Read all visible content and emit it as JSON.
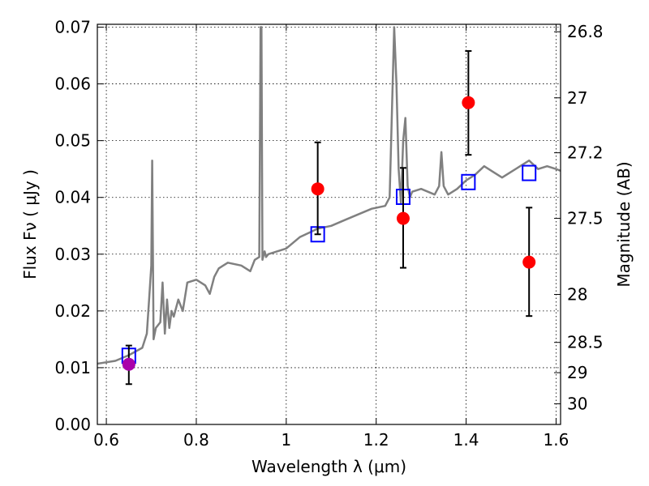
{
  "chart_data": {
    "type": "scatter",
    "xlabel": "Wavelength  λ (μm)",
    "ylabel": "Flux  Fν  ( μJy )",
    "ylabel2": "Magnitude (AB)",
    "xlim": [
      0.58,
      1.61
    ],
    "ylim": [
      0.0,
      0.0705
    ],
    "grid": true,
    "x_ticks": [
      0.6,
      0.8,
      1.0,
      1.2,
      1.4,
      1.6
    ],
    "x_tick_labels": [
      "0.6",
      "0.8",
      "1",
      "1.2",
      "1.4",
      "1.6"
    ],
    "y_ticks": [
      0.0,
      0.01,
      0.02,
      0.03,
      0.04,
      0.05,
      0.06,
      0.07
    ],
    "y_tick_labels": [
      "0.00",
      "0.01",
      "0.02",
      "0.03",
      "0.04",
      "0.05",
      "0.06",
      "0.07"
    ],
    "mag_ticks": [
      26.8,
      27.0,
      27.2,
      27.5,
      28.0,
      28.5,
      29.0,
      30.0
    ],
    "mag_tick_labels": [
      "26.8",
      "27",
      "27.2",
      "27.5",
      "28",
      "28.5",
      "29",
      "30"
    ],
    "series": [
      {
        "kind": "line",
        "color": "#808080",
        "x": [
          0.58,
          0.62,
          0.65,
          0.68,
          0.69,
          0.695,
          0.7,
          0.702,
          0.705,
          0.71,
          0.72,
          0.725,
          0.73,
          0.735,
          0.74,
          0.745,
          0.75,
          0.76,
          0.77,
          0.78,
          0.8,
          0.82,
          0.83,
          0.84,
          0.85,
          0.86,
          0.87,
          0.9,
          0.92,
          0.93,
          0.94,
          0.943,
          0.945,
          0.947,
          0.95,
          0.952,
          0.955,
          0.96,
          1.0,
          1.03,
          1.07,
          1.1,
          1.13,
          1.16,
          1.19,
          1.22,
          1.23,
          1.235,
          1.24,
          1.245,
          1.25,
          1.255,
          1.26,
          1.265,
          1.27,
          1.275,
          1.28,
          1.3,
          1.33,
          1.34,
          1.345,
          1.35,
          1.36,
          1.38,
          1.4,
          1.42,
          1.44,
          1.46,
          1.48,
          1.5,
          1.52,
          1.54,
          1.56,
          1.58,
          1.6,
          1.61
        ],
        "y": [
          0.0107,
          0.0112,
          0.0122,
          0.0135,
          0.016,
          0.022,
          0.028,
          0.0465,
          0.015,
          0.017,
          0.018,
          0.025,
          0.016,
          0.022,
          0.017,
          0.02,
          0.019,
          0.022,
          0.02,
          0.025,
          0.0255,
          0.0245,
          0.023,
          0.026,
          0.0275,
          0.028,
          0.0285,
          0.028,
          0.027,
          0.029,
          0.0295,
          0.07,
          0.07,
          0.029,
          0.03,
          0.0305,
          0.0295,
          0.03,
          0.031,
          0.033,
          0.0345,
          0.035,
          0.036,
          0.037,
          0.038,
          0.0385,
          0.04,
          0.055,
          0.07,
          0.06,
          0.045,
          0.039,
          0.05,
          0.054,
          0.042,
          0.04,
          0.041,
          0.0415,
          0.0405,
          0.042,
          0.048,
          0.042,
          0.0405,
          0.0415,
          0.043,
          0.044,
          0.0455,
          0.0445,
          0.0435,
          0.0445,
          0.0455,
          0.0465,
          0.045,
          0.0455,
          0.045,
          0.0447
        ]
      },
      {
        "kind": "errorbar",
        "color": "#ff0000",
        "x": [
          1.07,
          1.26,
          1.405,
          1.54
        ],
        "y": [
          0.0415,
          0.0363,
          0.0567,
          0.0286
        ],
        "y_low": [
          0.0335,
          0.0276,
          0.0475,
          0.0191
        ],
        "y_high": [
          0.0497,
          0.0452,
          0.0658,
          0.0382
        ]
      },
      {
        "kind": "errorbar",
        "color": "#aa00aa",
        "x": [
          0.65
        ],
        "y": [
          0.0106
        ],
        "y_low": [
          0.0071
        ],
        "y_high": [
          0.0139
        ]
      },
      {
        "kind": "model-points",
        "color": "#0000ff",
        "x": [
          0.65,
          1.07,
          1.26,
          1.405,
          1.54
        ],
        "y": [
          0.0121,
          0.0335,
          0.0401,
          0.0427,
          0.0443
        ]
      }
    ]
  }
}
